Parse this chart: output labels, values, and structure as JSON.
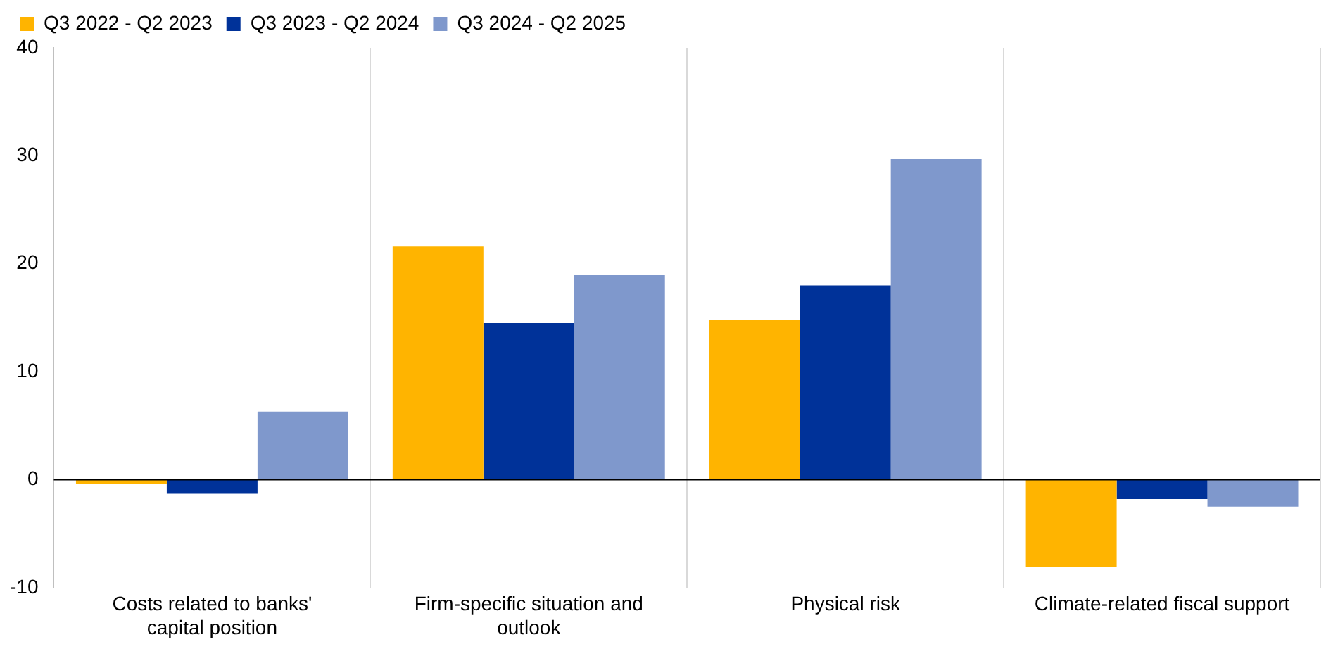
{
  "chart_data": {
    "type": "bar",
    "categories": [
      "Costs related to banks' capital position",
      "Firm-specific situation and outlook",
      "Physical risk",
      "Climate-related fiscal support"
    ],
    "series": [
      {
        "name": "Q3 2022 - Q2 2023",
        "color": "#ffb400",
        "values": [
          -0.4,
          21.6,
          14.8,
          -8.1
        ]
      },
      {
        "name": "Q3 2023 - Q2 2024",
        "color": "#003299",
        "values": [
          -1.3,
          14.5,
          18.0,
          -1.8
        ]
      },
      {
        "name": "Q3 2024 - Q2 2025",
        "color": "#7f98cc",
        "values": [
          6.3,
          19.0,
          29.7,
          -2.5
        ]
      }
    ],
    "ylim": [
      -10,
      40
    ],
    "yticks": [
      -10,
      0,
      10,
      20,
      30,
      40
    ],
    "grid": "x",
    "legend": "top left"
  }
}
